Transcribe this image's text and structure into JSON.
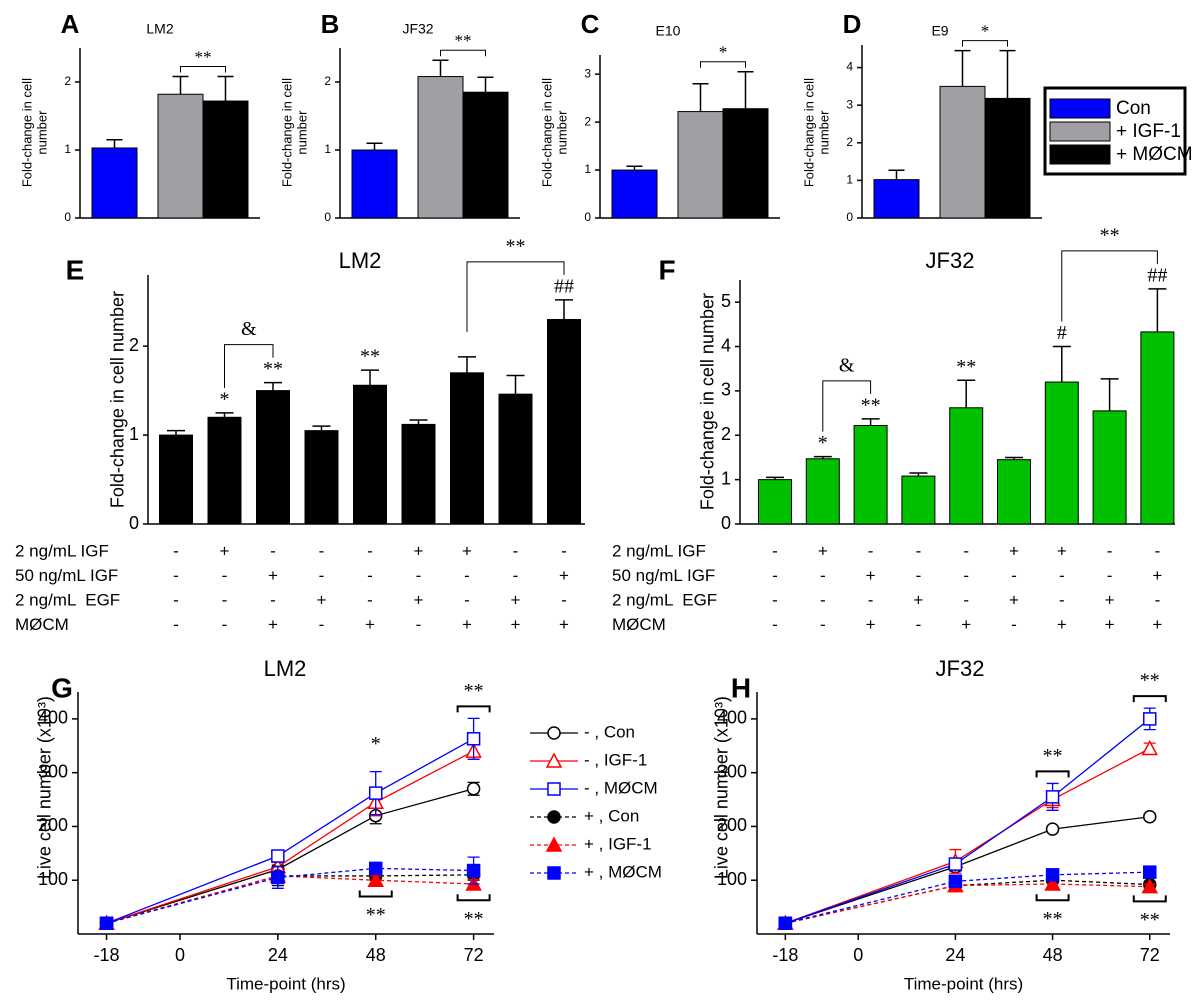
{
  "chart_data": [
    {
      "type": "bar",
      "panel": "A",
      "title": "LM2",
      "y_label": "Fold-change in cell number",
      "values": [
        1.03,
        1.82,
        1.72
      ],
      "errors": [
        0.12,
        0.26,
        0.36
      ],
      "colors": [
        "#0000ff",
        "#a0a0a4",
        "#000000"
      ],
      "legend": [
        "Con",
        "+ IGF-1",
        "+ MØCM"
      ],
      "ylim": [
        0,
        2.5
      ],
      "yticks": [
        0,
        1,
        2
      ],
      "brackets": [
        "**"
      ]
    },
    {
      "type": "bar",
      "panel": "B",
      "title": "JF32",
      "y_label": "Fold-change in cell number",
      "values": [
        1.0,
        2.08,
        1.85
      ],
      "errors": [
        0.1,
        0.24,
        0.22
      ],
      "colors": [
        "#0000ff",
        "#a0a0a4",
        "#000000"
      ],
      "ylim": [
        0,
        2.5
      ],
      "yticks": [
        0,
        1,
        2
      ],
      "brackets": [
        "**"
      ]
    },
    {
      "type": "bar",
      "panel": "C",
      "title": "E10",
      "y_label": "Fold-change in cell number",
      "values": [
        1.0,
        2.22,
        2.28
      ],
      "errors": [
        0.08,
        0.58,
        0.77
      ],
      "colors": [
        "#0000ff",
        "#a0a0a4",
        "#000000"
      ],
      "ylim": [
        0,
        3.4
      ],
      "yticks": [
        0,
        1,
        2,
        3
      ],
      "brackets": [
        "*"
      ]
    },
    {
      "type": "bar",
      "panel": "D",
      "title": "E9",
      "y_label": "Fold-change in cell number",
      "values": [
        1.02,
        3.5,
        3.18
      ],
      "errors": [
        0.25,
        0.95,
        1.27
      ],
      "colors": [
        "#0000ff",
        "#a0a0a4",
        "#000000"
      ],
      "ylim": [
        0,
        4.6
      ],
      "yticks": [
        0,
        1,
        2,
        3,
        4
      ],
      "brackets": [
        "*"
      ]
    },
    {
      "type": "bar",
      "panel": "E",
      "title": "LM2",
      "y_label": "Fold-change in cell number",
      "values": [
        1.0,
        1.2,
        1.5,
        1.05,
        1.56,
        1.12,
        1.7,
        1.46,
        2.3
      ],
      "errors": [
        0.05,
        0.05,
        0.09,
        0.05,
        0.17,
        0.05,
        0.18,
        0.21,
        0.22
      ],
      "color": "#000000",
      "ylim": [
        0,
        2.8
      ],
      "yticks": [
        0,
        1,
        2
      ],
      "sig_labels": [
        null,
        "*",
        "**",
        null,
        "**",
        null,
        null,
        null,
        "##"
      ],
      "brackets": [
        "&",
        "**"
      ],
      "conditions": [
        {
          "label": "2 ng/mL IGF",
          "signs": [
            "-",
            "+",
            "-",
            "-",
            "-",
            "+",
            "+",
            "-",
            "-"
          ]
        },
        {
          "label": "50 ng/mL IGF",
          "signs": [
            "-",
            "-",
            "+",
            "-",
            "-",
            "-",
            "-",
            "-",
            "+"
          ]
        },
        {
          "label": "2 ng/mL  EGF",
          "signs": [
            "-",
            "-",
            "-",
            "+",
            "-",
            "+",
            "-",
            "+",
            "-"
          ]
        },
        {
          "label": "MØCM",
          "signs": [
            "-",
            "-",
            "+",
            "-",
            "+",
            "-",
            "+",
            "+",
            "+"
          ]
        }
      ]
    },
    {
      "type": "bar",
      "panel": "F",
      "title": "JF32",
      "y_label": "Fold-change in cell number",
      "values": [
        1.0,
        1.47,
        2.22,
        1.08,
        2.62,
        1.45,
        3.2,
        2.55,
        4.33
      ],
      "errors": [
        0.05,
        0.05,
        0.15,
        0.07,
        0.62,
        0.05,
        0.8,
        0.72,
        0.97
      ],
      "color": "#00c000",
      "ylim": [
        0,
        5.5
      ],
      "yticks": [
        0,
        1,
        2,
        3,
        4,
        5
      ],
      "sig_labels": [
        null,
        "*",
        "**",
        null,
        "**",
        null,
        "#",
        null,
        "##"
      ],
      "brackets": [
        "&",
        "**"
      ],
      "conditions": [
        {
          "label": "2 ng/mL IGF",
          "signs": [
            "-",
            "+",
            "-",
            "-",
            "-",
            "+",
            "+",
            "-",
            "-"
          ]
        },
        {
          "label": "50 ng/mL IGF",
          "signs": [
            "-",
            "-",
            "+",
            "-",
            "-",
            "-",
            "-",
            "-",
            "+"
          ]
        },
        {
          "label": "2 ng/mL  EGF",
          "signs": [
            "-",
            "-",
            "-",
            "+",
            "-",
            "+",
            "-",
            "+",
            "-"
          ]
        },
        {
          "label": "MØCM",
          "signs": [
            "-",
            "-",
            "+",
            "-",
            "+",
            "-",
            "+",
            "+",
            "+"
          ]
        }
      ]
    },
    {
      "type": "line",
      "panel": "G",
      "title": "LM2",
      "x_label": "Time-point (hrs)",
      "y_label": "Live cell number (x10³)",
      "x": [
        -18,
        24,
        48,
        72
      ],
      "xlim": [
        -25,
        77
      ],
      "xticks": [
        -18,
        0,
        24,
        48,
        72
      ],
      "ylim": [
        0,
        450
      ],
      "yticks": [
        100,
        200,
        300,
        400
      ],
      "series": [
        {
          "name": "- , Con",
          "color": "#000000",
          "marker": "circle",
          "filled": false,
          "dashed": false,
          "values": [
            20,
            120,
            220,
            270
          ],
          "errors": [
            null,
            8,
            15,
            12
          ]
        },
        {
          "name": "- , IGF-1",
          "color": "#ff0000",
          "marker": "triangle",
          "filled": false,
          "dashed": false,
          "values": [
            20,
            125,
            245,
            340
          ],
          "errors": [
            null,
            8,
            25,
            15
          ]
        },
        {
          "name": "- , MØCM",
          "color": "#0000ff",
          "marker": "square",
          "filled": false,
          "dashed": false,
          "values": [
            20,
            145,
            262,
            363
          ],
          "errors": [
            null,
            5,
            40,
            38
          ]
        },
        {
          "name": "+ , Con",
          "color": "#000000",
          "marker": "circle",
          "filled": true,
          "dashed": true,
          "values": [
            20,
            108,
            108,
            110
          ],
          "errors": [
            null,
            18,
            8,
            10
          ]
        },
        {
          "name": "+ , IGF-1",
          "color": "#ff0000",
          "marker": "triangle",
          "filled": true,
          "dashed": true,
          "values": [
            20,
            108,
            100,
            93
          ],
          "errors": [
            null,
            8,
            8,
            8
          ]
        },
        {
          "name": "+ , MØCM",
          "color": "#0000ff",
          "marker": "square",
          "filled": true,
          "dashed": true,
          "values": [
            20,
            105,
            122,
            118
          ],
          "errors": [
            null,
            20,
            10,
            25
          ]
        }
      ],
      "annotations": [
        "*",
        "**",
        "**",
        "**"
      ]
    },
    {
      "type": "line",
      "panel": "H",
      "title": "JF32",
      "x_label": "Time-point (hrs)",
      "y_label": "Live cell number (x10³)",
      "x": [
        -18,
        24,
        48,
        72
      ],
      "xlim": [
        -25,
        77
      ],
      "xticks": [
        -18,
        0,
        24,
        48,
        72
      ],
      "ylim": [
        0,
        450
      ],
      "yticks": [
        100,
        200,
        300,
        400
      ],
      "series": [
        {
          "color": "#000000",
          "marker": "circle",
          "filled": false,
          "dashed": false,
          "values": [
            20,
            125,
            195,
            218
          ],
          "errors": [
            null,
            8,
            5,
            5
          ]
        },
        {
          "color": "#ff0000",
          "marker": "triangle",
          "filled": false,
          "dashed": false,
          "values": [
            20,
            135,
            250,
            345
          ],
          "errors": [
            null,
            22,
            15,
            10
          ]
        },
        {
          "color": "#0000ff",
          "marker": "square",
          "filled": false,
          "dashed": false,
          "values": [
            20,
            130,
            255,
            400
          ],
          "errors": [
            null,
            10,
            25,
            20
          ]
        },
        {
          "color": "#000000",
          "marker": "circle",
          "filled": true,
          "dashed": true,
          "values": [
            20,
            90,
            100,
            92
          ],
          "errors": [
            null,
            5,
            5,
            5
          ]
        },
        {
          "color": "#ff0000",
          "marker": "triangle",
          "filled": true,
          "dashed": true,
          "values": [
            20,
            90,
            93,
            88
          ],
          "errors": [
            null,
            5,
            8,
            5
          ]
        },
        {
          "color": "#0000ff",
          "marker": "square",
          "filled": true,
          "dashed": true,
          "values": [
            20,
            98,
            110,
            115
          ],
          "errors": [
            null,
            5,
            5,
            5
          ]
        }
      ],
      "annotations": [
        "**",
        "**",
        "**",
        "**"
      ]
    }
  ]
}
